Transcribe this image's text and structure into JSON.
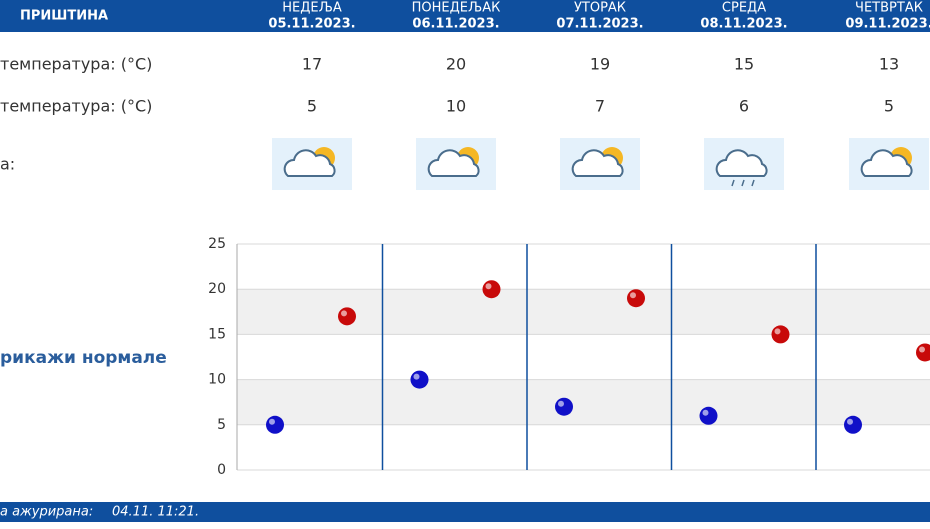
{
  "header": {
    "city": "ПРИШТИНА",
    "days": [
      {
        "name": "НЕДЕЉА",
        "date": "05.11.2023."
      },
      {
        "name": "ПОНЕДЕЉАК",
        "date": "06.11.2023."
      },
      {
        "name": "УТОРАК",
        "date": "07.11.2023."
      },
      {
        "name": "СРЕДА",
        "date": "08.11.2023."
      },
      {
        "name": "ЧЕТВРТАК",
        "date": "09.11.2023."
      }
    ]
  },
  "table": {
    "rows": [
      {
        "label": "температура: (°C)",
        "values": [
          17,
          20,
          19,
          15,
          13
        ]
      },
      {
        "label": "температура: (°C)",
        "values": [
          5,
          10,
          7,
          6,
          5
        ]
      },
      {
        "label": "а:",
        "icons": [
          "partly-cloudy",
          "partly-cloudy",
          "partly-cloudy",
          "rain",
          "partly-cloudy"
        ]
      }
    ]
  },
  "toggle": "рикажи нормале",
  "chart_data": {
    "type": "scatter",
    "categories": [
      null,
      null,
      null,
      null,
      null
    ],
    "series": [
      {
        "color": "#1010c8",
        "values": [
          5,
          10,
          7,
          6,
          5
        ]
      },
      {
        "color": "#c80a0a",
        "values": [
          17,
          20,
          19,
          15,
          13
        ]
      }
    ],
    "ylim": [
      0,
      25
    ],
    "yticks": [
      0,
      5,
      10,
      15,
      20,
      25
    ],
    "grid": true
  },
  "footer": {
    "label": "а ажурирана:",
    "time": "04.11. 11:21."
  }
}
